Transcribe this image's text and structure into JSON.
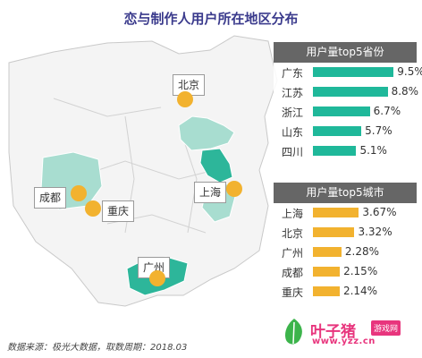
{
  "title": "恋与制作人用户所在地区分布",
  "source": "数据来源：极光大数据，取数周期：2018.03",
  "watermark": {
    "name": "叶子猪",
    "tag": "游戏网",
    "url": "www.yzz.cn"
  },
  "colors": {
    "province_bar": "#1fb89a",
    "city_bar": "#f2b22f",
    "province_fill": "#a8ddd0",
    "province_fill_dark": "#2db69a"
  },
  "chart_data": [
    {
      "type": "bar",
      "title": "用户量top5省份",
      "categories": [
        "广东",
        "江苏",
        "浙江",
        "山东",
        "四川"
      ],
      "values": [
        9.5,
        8.8,
        6.7,
        5.7,
        5.1
      ],
      "value_labels": [
        "9.5%",
        "8.8%",
        "6.7%",
        "5.7%",
        "5.1%"
      ],
      "unit": "%"
    },
    {
      "type": "bar",
      "title": "用户量top5城市",
      "categories": [
        "上海",
        "北京",
        "广州",
        "成都",
        "重庆"
      ],
      "values": [
        3.67,
        3.32,
        2.28,
        2.15,
        2.14
      ],
      "value_labels": [
        "3.67%",
        "3.32%",
        "2.28%",
        "2.15%",
        "2.14%"
      ],
      "unit": "%"
    }
  ],
  "map_cities": [
    "北京",
    "上海",
    "成都",
    "重庆",
    "广州"
  ]
}
